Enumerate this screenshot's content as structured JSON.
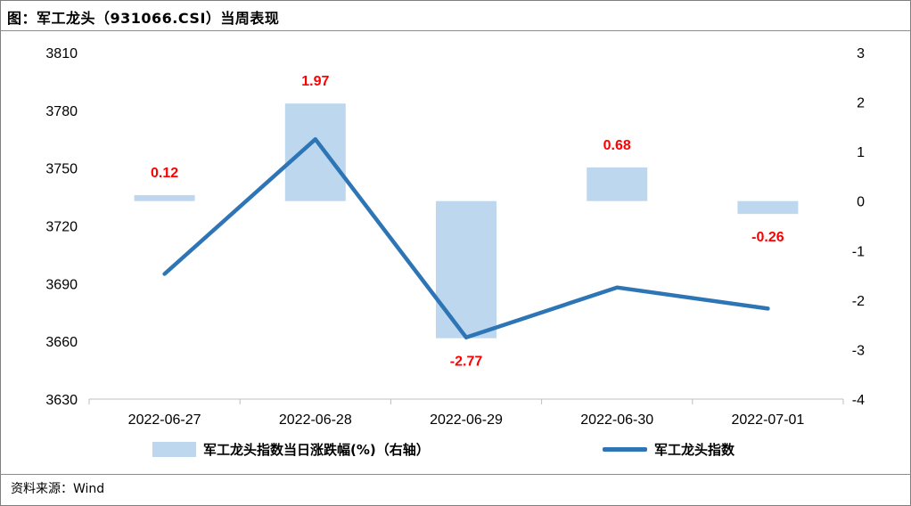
{
  "header": {
    "title": "图：军工龙头（931066.CSI）当周表现"
  },
  "footer": {
    "source": "资料来源：Wind"
  },
  "chart_data": {
    "type": "bar",
    "categories": [
      "2022-06-27",
      "2022-06-28",
      "2022-06-29",
      "2022-06-30",
      "2022-07-01"
    ],
    "series": [
      {
        "name": "军工龙头指数当日涨跌幅(%)（右轴）",
        "type": "bar",
        "axis": "right",
        "values": [
          0.12,
          1.97,
          -2.77,
          0.68,
          -0.26
        ],
        "labels": [
          "0.12",
          "1.97",
          "-2.77",
          "0.68",
          "-0.26"
        ],
        "color": "#bdd7ee",
        "label_color": "#ff0000"
      },
      {
        "name": "军工龙头指数",
        "type": "line",
        "axis": "left",
        "values": [
          3695,
          3765,
          3662,
          3688,
          3677
        ],
        "color": "#2e75b6"
      }
    ],
    "y_left": {
      "ylim": [
        3630,
        3810
      ],
      "ticks": [
        "3630",
        "3660",
        "3690",
        "3720",
        "3750",
        "3780",
        "3810"
      ]
    },
    "y_right": {
      "ylim": [
        -4,
        3
      ],
      "ticks": [
        "-4",
        "-3",
        "-2",
        "-1",
        "0",
        "1",
        "2",
        "3"
      ]
    },
    "grid": false,
    "legend": "bottom"
  }
}
